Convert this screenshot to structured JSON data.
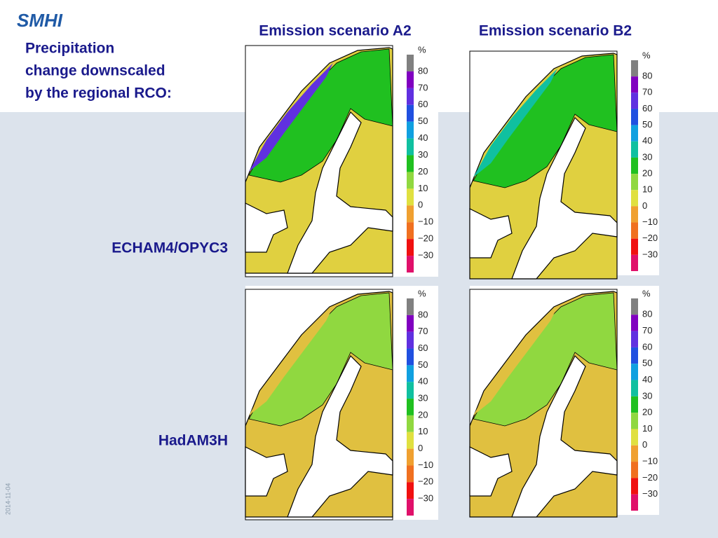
{
  "logo": "SMHI",
  "title": [
    "Precipitation",
    "change downscaled",
    "by the regional RCO:"
  ],
  "columns": [
    "Emission scenario A2",
    "Emission scenario B2"
  ],
  "rows": [
    "ECHAM4/OPYC3",
    "HadAM3H"
  ],
  "colorbar": {
    "unit": "%",
    "labels": [
      "80",
      "70",
      "60",
      "50",
      "40",
      "30",
      "20",
      "10",
      "0",
      "−10",
      "−20",
      "−30"
    ]
  },
  "date": "2014-11-04"
}
